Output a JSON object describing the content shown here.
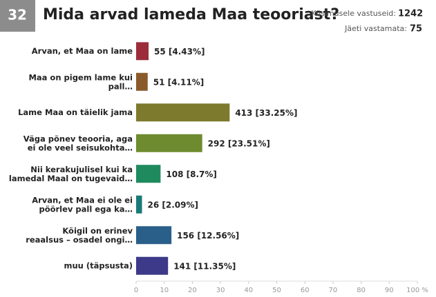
{
  "chart_data": {
    "type": "hbar",
    "question_number": "32",
    "title": "Mida arvad lameda Maa teooriast?",
    "answered_label": "Küsimusele vastuseid:",
    "answered": 1242,
    "skipped_label": "Jäeti vastamata:",
    "skipped": 75,
    "categories": [
      "Arvan, et Maa on lame",
      "Maa on pigem lame kui\npall…",
      "Lame Maa on täielik jama",
      "Väga põnev teooria, aga\nei ole veel seisukohta…",
      "Nii kerakujulisel kui ka\nlamedal Maal on tugevaid…",
      "Arvan, et Maa ei ole ei\npöörlev pall ega ka…",
      "Kõigil on erinev\nreaalsus – osadel ongi…",
      "muu (täpsusta)"
    ],
    "values": [
      4.43,
      4.11,
      33.25,
      23.51,
      8.7,
      2.09,
      12.56,
      11.35
    ],
    "value_labels": [
      "55 [4.43%]",
      "51 [4.11%]",
      "413 [33.25%]",
      "292 [23.51%]",
      "108 [8.7%]",
      "26 [2.09%]",
      "156 [12.56%]",
      "141 [11.35%]"
    ],
    "colors": [
      "#9b2d3a",
      "#8a5a2b",
      "#7d7a2e",
      "#6e8b2f",
      "#1f8a5e",
      "#1a7a7a",
      "#2a5f8a",
      "#3d3a8a"
    ],
    "xlim": [
      0,
      100
    ],
    "xticks": [
      0,
      10,
      20,
      30,
      40,
      50,
      60,
      70,
      80,
      90,
      {
        "value": 100,
        "label": "100 %"
      }
    ]
  }
}
